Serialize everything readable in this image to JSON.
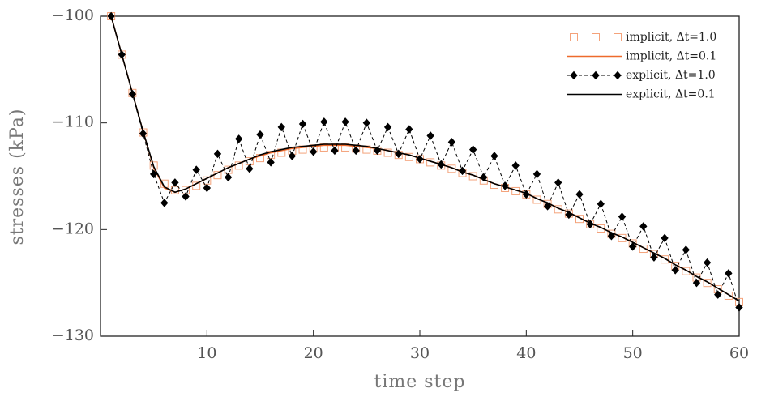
{
  "chart_data": {
    "type": "line",
    "xlabel": "time step",
    "ylabel": "stresses (kPa)",
    "x": [
      1,
      2,
      3,
      4,
      5,
      6,
      7,
      8,
      9,
      10,
      11,
      12,
      13,
      14,
      15,
      16,
      17,
      18,
      19,
      20,
      21,
      22,
      23,
      24,
      25,
      26,
      27,
      28,
      29,
      30,
      31,
      32,
      33,
      34,
      35,
      36,
      37,
      38,
      39,
      40,
      41,
      42,
      43,
      44,
      45,
      46,
      47,
      48,
      49,
      50,
      51,
      52,
      53,
      54,
      55,
      56,
      57,
      58,
      59,
      60
    ],
    "xlim": [
      0,
      60
    ],
    "xticks": [
      10,
      20,
      30,
      40,
      50,
      60
    ],
    "ylim": [
      -130,
      -100
    ],
    "yticks": [
      {
        "value": -130,
        "label": "−130"
      },
      {
        "value": -120,
        "label": "−120"
      },
      {
        "value": -110,
        "label": "−110"
      },
      {
        "value": -100,
        "label": "−100"
      }
    ],
    "legend": "upper right",
    "series": [
      {
        "name": "implicit,  Δt=1.0",
        "color": "#f4a27a",
        "marker": "square",
        "line": false,
        "dashed": false,
        "values": [
          -100,
          -103.6,
          -107.2,
          -110.9,
          -114.0,
          -115.7,
          -116.3,
          -116.3,
          -115.9,
          -115.4,
          -114.9,
          -114.4,
          -114.0,
          -113.6,
          -113.3,
          -113.0,
          -112.8,
          -112.6,
          -112.5,
          -112.4,
          -112.3,
          -112.3,
          -112.3,
          -112.4,
          -112.5,
          -112.6,
          -112.8,
          -113.0,
          -113.2,
          -113.4,
          -113.7,
          -114.0,
          -114.3,
          -114.7,
          -115.0,
          -115.4,
          -115.8,
          -116.1,
          -116.4,
          -116.7,
          -117.2,
          -117.6,
          -118.1,
          -118.5,
          -119.0,
          -119.5,
          -119.9,
          -120.4,
          -120.8,
          -121.3,
          -121.8,
          -122.3,
          -122.8,
          -123.4,
          -123.9,
          -124.5,
          -125.0,
          -125.6,
          -126.2,
          -126.8
        ]
      },
      {
        "name": "implicit,  Δt=0.1",
        "color": "#ee6a2c",
        "marker": null,
        "line": true,
        "dashed": false,
        "values": [
          -100,
          -103.6,
          -107.2,
          -110.8,
          -114.2,
          -116.1,
          -116.5,
          -116.2,
          -115.7,
          -115.2,
          -114.7,
          -114.2,
          -113.8,
          -113.4,
          -113.1,
          -112.8,
          -112.6,
          -112.4,
          -112.3,
          -112.2,
          -112.1,
          -112.1,
          -112.1,
          -112.2,
          -112.3,
          -112.4,
          -112.6,
          -112.8,
          -113.0,
          -113.3,
          -113.6,
          -113.9,
          -114.2,
          -114.6,
          -114.9,
          -115.3,
          -115.7,
          -116.0,
          -116.3,
          -116.6,
          -117.1,
          -117.5,
          -118.0,
          -118.4,
          -118.9,
          -119.4,
          -119.8,
          -120.3,
          -120.7,
          -121.2,
          -121.7,
          -122.2,
          -122.7,
          -123.3,
          -123.8,
          -124.4,
          -124.9,
          -125.5,
          -126.1,
          -126.7
        ]
      },
      {
        "name": "explicit,  Δt=1.0",
        "color": "#000000",
        "marker": "diamond",
        "line": true,
        "dashed": true,
        "values": [
          -100,
          -103.6,
          -107.3,
          -111.0,
          -114.8,
          -117.5,
          -115.6,
          -116.9,
          -114.4,
          -116.1,
          -112.9,
          -115.1,
          -111.5,
          -114.3,
          -111.1,
          -113.7,
          -110.4,
          -113.1,
          -110.1,
          -112.7,
          -109.9,
          -112.6,
          -109.9,
          -112.6,
          -110.0,
          -112.6,
          -110.4,
          -112.9,
          -110.6,
          -113.4,
          -111.2,
          -113.9,
          -111.8,
          -114.5,
          -112.5,
          -115.1,
          -113.1,
          -115.9,
          -114.0,
          -116.7,
          -114.8,
          -117.8,
          -115.6,
          -118.6,
          -116.7,
          -119.5,
          -117.6,
          -120.6,
          -118.8,
          -121.6,
          -119.7,
          -122.6,
          -120.8,
          -123.8,
          -121.9,
          -125.0,
          -123.1,
          -126.1,
          -124.1,
          -127.3
        ]
      },
      {
        "name": "explicit,  Δt=0.1",
        "color": "#000000",
        "marker": null,
        "line": true,
        "dashed": false,
        "values": [
          -100,
          -103.6,
          -107.2,
          -110.8,
          -114.1,
          -116.0,
          -116.5,
          -116.2,
          -115.7,
          -115.2,
          -114.7,
          -114.2,
          -113.8,
          -113.4,
          -113.0,
          -112.7,
          -112.5,
          -112.3,
          -112.2,
          -112.1,
          -112.0,
          -112.0,
          -112.0,
          -112.1,
          -112.2,
          -112.4,
          -112.6,
          -112.8,
          -113.0,
          -113.3,
          -113.6,
          -113.9,
          -114.2,
          -114.6,
          -114.9,
          -115.3,
          -115.7,
          -116.0,
          -116.3,
          -116.6,
          -117.1,
          -117.5,
          -118.0,
          -118.4,
          -118.9,
          -119.4,
          -119.8,
          -120.3,
          -120.7,
          -121.2,
          -121.7,
          -122.2,
          -122.7,
          -123.3,
          -123.8,
          -124.4,
          -124.9,
          -125.5,
          -126.1,
          -126.7
        ]
      }
    ]
  }
}
